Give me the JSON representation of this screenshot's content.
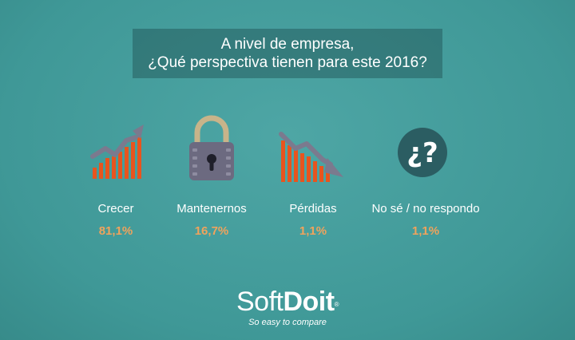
{
  "title": {
    "line1": "A nivel de empresa,",
    "line2": "¿Qué perspectiva tienen para este 2016?"
  },
  "chart_data": {
    "type": "bar",
    "title": "A nivel de empresa, ¿Qué perspectiva tienen para este 2016?",
    "categories": [
      "Crecer",
      "Mantenernos",
      "Pérdidas",
      "No sé / no respondo"
    ],
    "values": [
      81.1,
      16.7,
      1.1,
      1.1
    ],
    "value_labels": [
      "81,1%",
      "16,7%",
      "1,1%",
      "1,1%"
    ],
    "icons": [
      "growth-chart-icon",
      "padlock-icon",
      "decline-chart-icon",
      "question-icon"
    ]
  },
  "colors": {
    "background": "#3f9897",
    "value_text": "#f0a35c",
    "bar": "#e8541e",
    "arrow": "#7b7a8e",
    "lock_body": "#6c6a80",
    "lock_shackle": "#c8b48a",
    "question_circle": "#2b5d62"
  },
  "logo": {
    "soft": "Soft",
    "doit": "Doit",
    "reg": "®",
    "tagline": "So easy to compare"
  }
}
